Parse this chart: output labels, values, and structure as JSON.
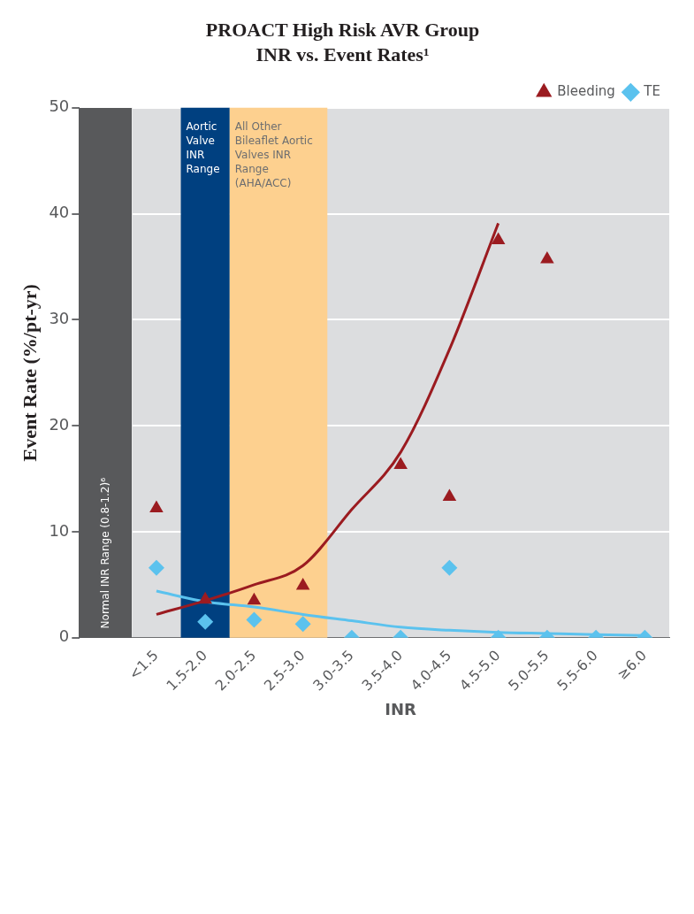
{
  "chart_data": {
    "type": "scatter",
    "title": "PROACT High Risk AVR Group",
    "subtitle": "INR vs. Event Rates¹",
    "xlabel": "INR",
    "ylabel": "Event Rate (%/pt-yr)",
    "categories": [
      "<1.5",
      "1.5-2.0",
      "2.0-2.5",
      "2.5-3.0",
      "3.0-3.5",
      "3.5-4.0",
      "4.0-4.5",
      "4.5-5.0",
      "5.0-5.5",
      "5.5-6.0",
      "≥6.0"
    ],
    "series": [
      {
        "name": "Bleeding",
        "type": "scatter",
        "marker": "triangle",
        "color": "#9b1b20",
        "values": [
          12.2,
          3.6,
          3.5,
          4.9,
          null,
          16.3,
          13.3,
          37.5,
          35.7,
          null,
          null
        ]
      },
      {
        "name": "TE",
        "type": "scatter",
        "marker": "diamond",
        "color": "#5bc2ee",
        "values": [
          6.6,
          1.5,
          1.7,
          1.3,
          0,
          0,
          6.6,
          0,
          0,
          0,
          0
        ]
      },
      {
        "type": "line",
        "marker": "none",
        "color": "#9b1b20",
        "values": [
          2.2,
          3.5,
          5.0,
          6.8,
          12.1,
          17.5,
          27.2,
          39.1,
          null,
          null,
          null
        ]
      },
      {
        "type": "line",
        "marker": "none",
        "color": "#5bc2ee",
        "values": [
          4.4,
          3.4,
          2.9,
          2.2,
          1.6,
          1.0,
          0.7,
          0.5,
          0.4,
          0.3,
          0.2
        ]
      }
    ],
    "ylim": [
      0,
      50
    ],
    "yticks": [
      0,
      10,
      20,
      30,
      40,
      50
    ],
    "grid": "y",
    "legend": "top right",
    "bands": [
      {
        "axis": "x",
        "from": "1.5-2.0",
        "to": "1.5-2.0",
        "label": "Aortic Valve INR Range",
        "color": "#004080"
      },
      {
        "axis": "x",
        "from": "2.0-2.5",
        "to": "2.5-3.0",
        "label": "All Other Bileaflet Aortic Valves INR Range (AHA/ACC)",
        "color": "#fdd08f"
      }
    ],
    "annotations": [
      "Normal INR Range (0.8-1.2)⁶"
    ]
  }
}
